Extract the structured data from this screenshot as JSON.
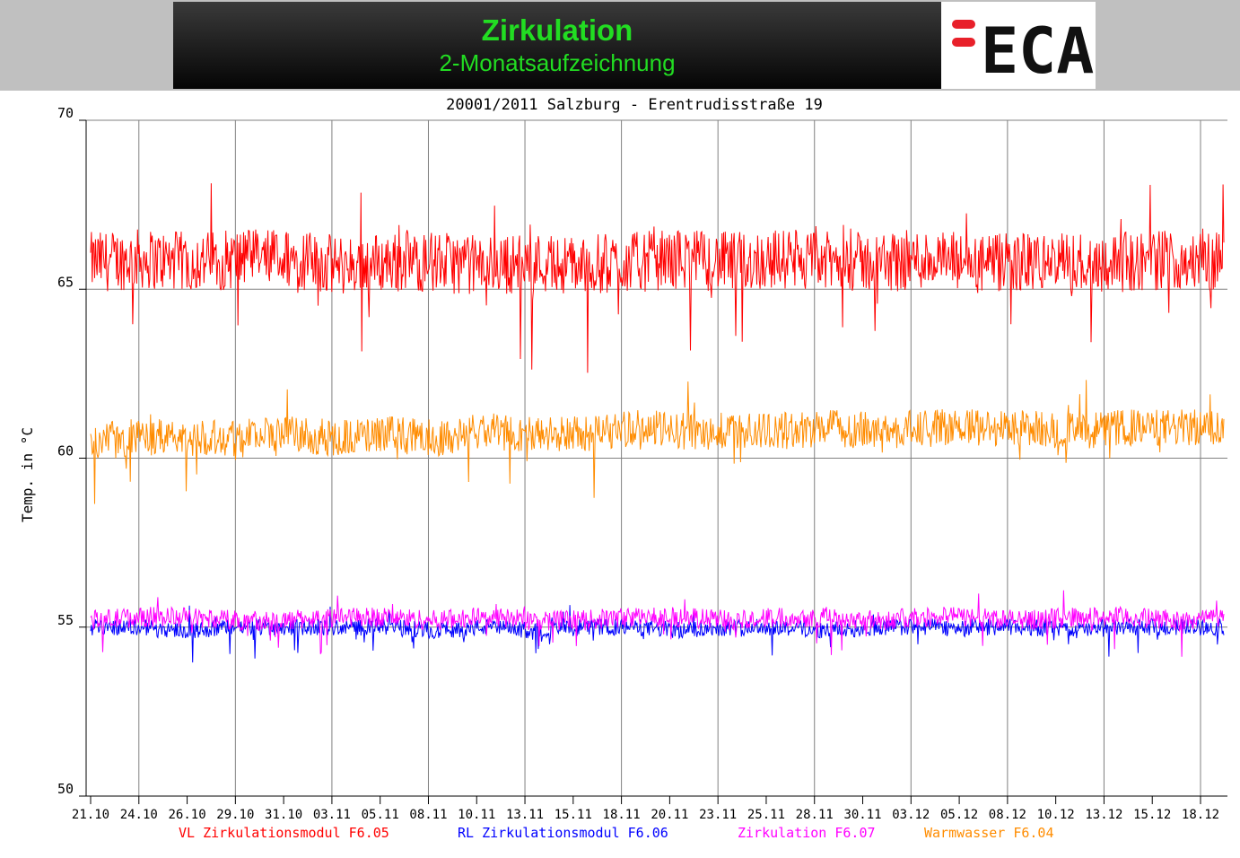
{
  "header": {
    "title": "Zirkulation",
    "subtitle": "2-Monatsaufzeichnung",
    "logo_text": "ECA"
  },
  "colors": {
    "header_bg": "#c0c0c0",
    "title_green": "#22dd22",
    "logo_red": "#e8202a",
    "logo_text": "#111111",
    "grid": "#808080"
  },
  "chart_data": {
    "type": "line",
    "title": "20001/2011 Salzburg - Erentrudisstraße 19",
    "ylabel": "Temp. in °C",
    "xlabel": "",
    "ylim": [
      50,
      70
    ],
    "yticks": [
      50,
      55,
      60,
      65,
      70
    ],
    "grid": true,
    "legend_position": "bottom",
    "categories": [
      "21.10",
      "24.10",
      "26.10",
      "29.10",
      "31.10",
      "03.11",
      "05.11",
      "08.11",
      "10.11",
      "13.11",
      "15.11",
      "18.11",
      "20.11",
      "23.11",
      "25.11",
      "28.11",
      "30.11",
      "03.12",
      "05.12",
      "08.12",
      "10.12",
      "13.12",
      "15.12",
      "18.12"
    ],
    "series": [
      {
        "name": "VL Zirkulationsmodul F6.05",
        "color": "#ff0000",
        "values": [
          65.8,
          65.9,
          65.8,
          65.9,
          65.9,
          65.7,
          65.8,
          65.8,
          65.7,
          65.8,
          65.7,
          65.8,
          65.9,
          65.8,
          65.9,
          65.8,
          65.8,
          65.9,
          65.7,
          65.8,
          65.8,
          65.8,
          65.9,
          65.8
        ]
      },
      {
        "name": "RL Zirkulationsmodul F6.06",
        "color": "#0000ff",
        "values": [
          55.0,
          55.0,
          54.9,
          55.0,
          55.0,
          55.0,
          55.0,
          54.9,
          55.0,
          54.9,
          55.0,
          55.0,
          54.9,
          55.0,
          55.0,
          54.9,
          55.0,
          55.0,
          55.0,
          55.0,
          54.9,
          55.0,
          55.0,
          55.0
        ]
      },
      {
        "name": "Zirkulation F6.07",
        "color": "#ff00ff",
        "values": [
          55.2,
          55.3,
          55.3,
          55.2,
          55.2,
          55.3,
          55.3,
          55.2,
          55.3,
          55.2,
          55.2,
          55.3,
          55.3,
          55.2,
          55.3,
          55.3,
          55.2,
          55.3,
          55.3,
          55.2,
          55.3,
          55.3,
          55.2,
          55.3
        ]
      },
      {
        "name": "Warmwasser F6.04",
        "color": "#ff8c00",
        "values": [
          60.5,
          60.6,
          60.6,
          60.7,
          60.7,
          60.6,
          60.7,
          60.6,
          60.8,
          60.7,
          60.7,
          60.9,
          60.8,
          60.8,
          60.8,
          60.9,
          60.8,
          60.9,
          60.9,
          60.9,
          60.8,
          60.9,
          60.9,
          60.9
        ]
      }
    ]
  }
}
